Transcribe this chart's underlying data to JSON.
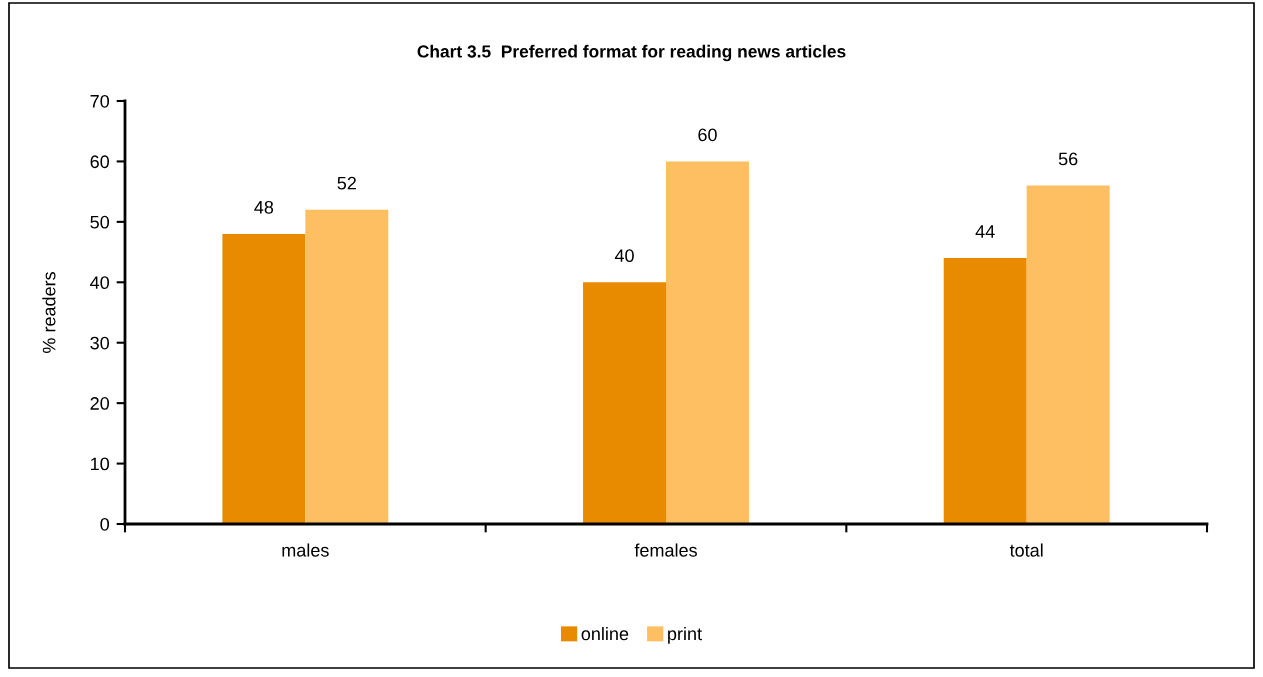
{
  "chart_data": {
    "type": "bar",
    "title": "Chart 3.5  Preferred format for reading news articles",
    "ylabel": "% readers",
    "categories": [
      "males",
      "females",
      "total"
    ],
    "series": [
      {
        "name": "online",
        "color": "#e98b00",
        "values": [
          48,
          40,
          44
        ]
      },
      {
        "name": "print",
        "color": "#febe62",
        "values": [
          52,
          60,
          56
        ]
      }
    ],
    "ylim": [
      0,
      70
    ],
    "yticks": [
      0,
      10,
      20,
      30,
      40,
      50,
      60,
      70
    ],
    "grid": false,
    "legend": "bottom",
    "data_labels": true
  }
}
